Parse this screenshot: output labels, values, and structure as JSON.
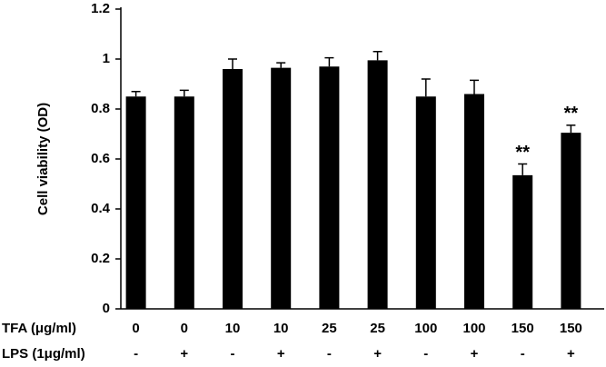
{
  "chart_data": {
    "type": "bar",
    "y_label": "Cell viability (OD)",
    "row_labels": [
      "TFA (μg/ml)",
      "LPS (1μg/ml)"
    ],
    "categories": [
      "0",
      "0",
      "10",
      "10",
      "25",
      "25",
      "100",
      "100",
      "150",
      "150"
    ],
    "lps": [
      "-",
      "+",
      "-",
      "+",
      "-",
      "+",
      "-",
      "+",
      "-",
      "+"
    ],
    "values": [
      0.85,
      0.85,
      0.96,
      0.965,
      0.97,
      0.995,
      0.85,
      0.86,
      0.535,
      0.705
    ],
    "errors": [
      0.02,
      0.025,
      0.04,
      0.02,
      0.035,
      0.035,
      0.07,
      0.055,
      0.045,
      0.03
    ],
    "significance": [
      null,
      null,
      null,
      null,
      null,
      null,
      null,
      null,
      "**",
      "**"
    ],
    "color": "#000000",
    "ylim": [
      0,
      1.2
    ],
    "yticks": [
      0,
      0.2,
      0.4,
      0.6,
      0.8,
      1,
      1.2
    ]
  }
}
